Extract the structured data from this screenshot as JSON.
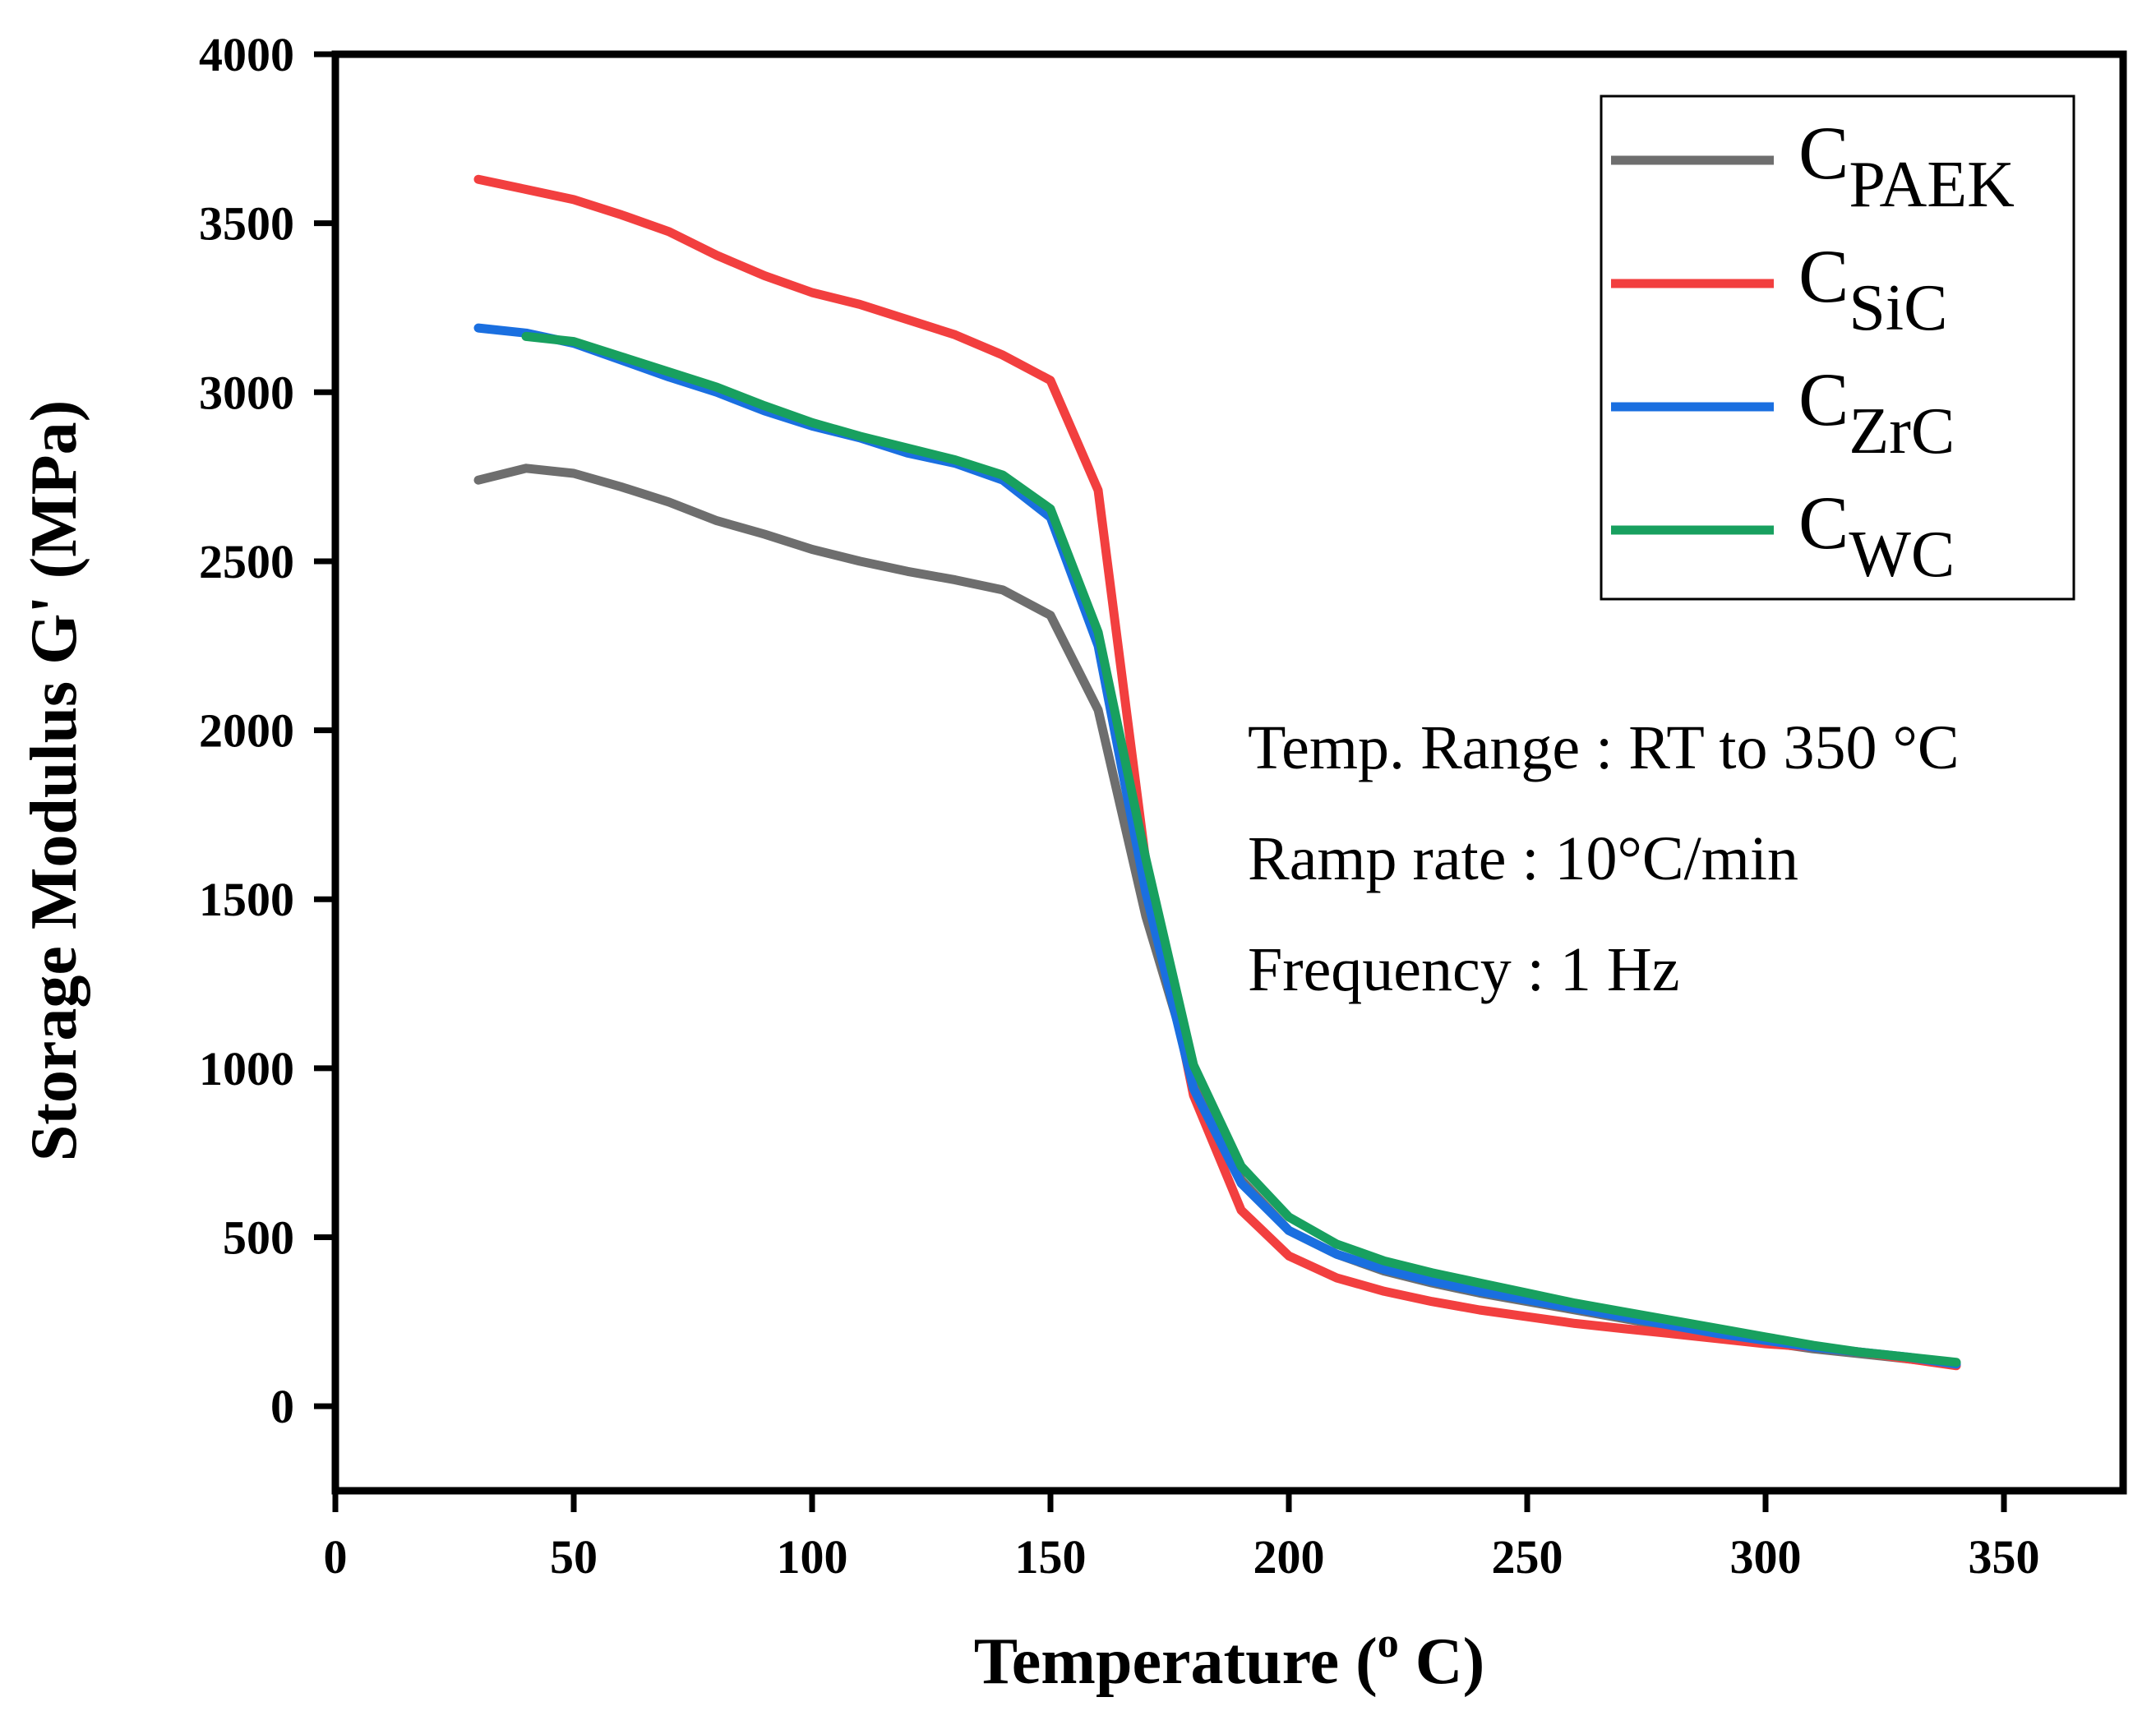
{
  "chart_data": {
    "type": "line",
    "title": "",
    "xlabel": "Temperature (",
    "xlabel_sup": "o",
    "xlabel_end": " C)",
    "ylabel": "Storage Modulus G' (MPa)",
    "xlim": [
      0,
      375
    ],
    "ylim": [
      -250,
      4000
    ],
    "xticks": [
      0,
      50,
      100,
      150,
      200,
      250,
      300,
      350
    ],
    "yticks": [
      0,
      500,
      1000,
      1500,
      2000,
      2500,
      3000,
      3500,
      4000
    ],
    "legend_position": "top-right",
    "series": [
      {
        "name": "PAEK",
        "prefix": "C",
        "color": "#6e6e6e",
        "x": [
          30,
          40,
          50,
          60,
          70,
          80,
          90,
          100,
          110,
          120,
          130,
          140,
          150,
          160,
          170,
          180,
          190,
          200,
          210,
          220,
          230,
          240,
          250,
          260,
          270,
          280,
          290,
          300,
          310,
          320,
          330,
          340
        ],
        "y": [
          2740,
          2775,
          2760,
          2720,
          2675,
          2620,
          2580,
          2535,
          2500,
          2470,
          2445,
          2415,
          2340,
          2060,
          1450,
          980,
          670,
          520,
          450,
          400,
          365,
          335,
          310,
          285,
          260,
          235,
          210,
          190,
          170,
          155,
          140,
          125
        ]
      },
      {
        "name": "SiC",
        "prefix": "C",
        "color": "#f23f3f",
        "x": [
          30,
          40,
          50,
          60,
          70,
          80,
          90,
          100,
          110,
          120,
          130,
          140,
          150,
          160,
          170,
          180,
          190,
          200,
          210,
          220,
          230,
          240,
          250,
          260,
          270,
          280,
          290,
          300,
          310,
          320,
          330,
          340
        ],
        "y": [
          3630,
          3600,
          3570,
          3525,
          3475,
          3405,
          3345,
          3295,
          3260,
          3215,
          3170,
          3110,
          3035,
          2710,
          1610,
          920,
          580,
          445,
          380,
          340,
          310,
          285,
          265,
          245,
          230,
          215,
          200,
          185,
          175,
          160,
          140,
          120
        ]
      },
      {
        "name": "ZrC",
        "prefix": "C",
        "color": "#1a6fe0",
        "x": [
          30,
          40,
          50,
          60,
          70,
          80,
          90,
          100,
          110,
          120,
          130,
          140,
          150,
          160,
          170,
          180,
          190,
          200,
          210,
          220,
          230,
          240,
          250,
          260,
          270,
          280,
          290,
          300,
          310,
          320,
          330,
          340
        ],
        "y": [
          3190,
          3175,
          3145,
          3095,
          3045,
          3000,
          2945,
          2900,
          2865,
          2820,
          2790,
          2740,
          2630,
          2250,
          1520,
          940,
          660,
          520,
          450,
          405,
          370,
          340,
          315,
          290,
          265,
          240,
          215,
          195,
          175,
          160,
          145,
          125
        ]
      },
      {
        "name": "WC",
        "prefix": "C",
        "color": "#18a05f",
        "x": [
          40,
          50,
          60,
          70,
          80,
          90,
          100,
          110,
          120,
          130,
          140,
          150,
          160,
          170,
          180,
          190,
          200,
          210,
          220,
          230,
          240,
          250,
          260,
          270,
          280,
          290,
          300,
          310,
          320,
          330,
          340
        ],
        "y": [
          3165,
          3150,
          3105,
          3060,
          3015,
          2960,
          2910,
          2870,
          2835,
          2800,
          2755,
          2655,
          2290,
          1620,
          1010,
          710,
          560,
          480,
          430,
          395,
          365,
          335,
          305,
          280,
          255,
          230,
          205,
          180,
          160,
          145,
          130
        ]
      }
    ],
    "annotations": [
      "Temp. Range : RT to 350 °C",
      "Ramp rate : 10°C/min",
      "Frequency : 1 Hz"
    ]
  }
}
